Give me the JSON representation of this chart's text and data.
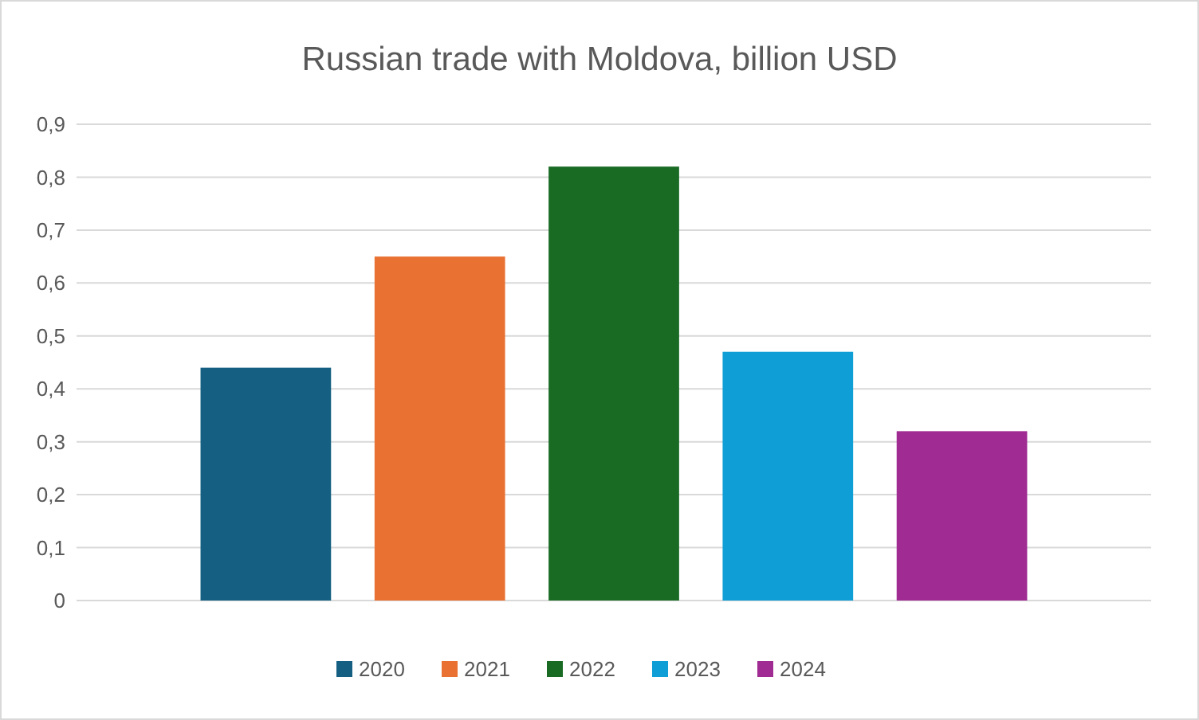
{
  "chart_data": {
    "type": "bar",
    "title": "Russian trade with Moldova, billion USD",
    "categories": [
      null
    ],
    "series": [
      {
        "name": "2020",
        "color": "#156082",
        "values": [
          0.44
        ]
      },
      {
        "name": "2021",
        "color": "#e97132",
        "values": [
          0.65
        ]
      },
      {
        "name": "2022",
        "color": "#196b24",
        "values": [
          0.82
        ]
      },
      {
        "name": "2023",
        "color": "#0f9ed5",
        "values": [
          0.47
        ]
      },
      {
        "name": "2024",
        "color": "#a02b93",
        "values": [
          0.32
        ]
      }
    ],
    "ylim": [
      0,
      0.9
    ],
    "yticks": [
      0,
      {
        "value": 0.1,
        "label": "0,1"
      },
      {
        "value": 0.2,
        "label": "0,2"
      },
      {
        "value": 0.3,
        "label": "0,3"
      },
      {
        "value": 0.4,
        "label": "0,4"
      },
      {
        "value": 0.5,
        "label": "0,5"
      },
      {
        "value": 0.6,
        "label": "0,6"
      },
      {
        "value": 0.7,
        "label": "0,7"
      },
      {
        "value": 0.8,
        "label": "0,8"
      },
      {
        "value": 0.9,
        "label": "0,9"
      }
    ],
    "grid": "y",
    "legend": "bottom"
  }
}
